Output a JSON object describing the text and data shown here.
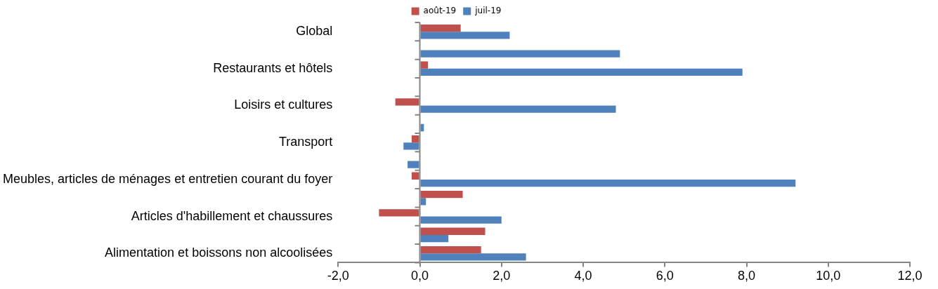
{
  "chart_data": {
    "type": "bar",
    "orientation": "horizontal",
    "legend": "top",
    "categories": [
      "Global",
      null,
      "Restaurants et hôtels",
      null,
      "Loisirs et cultures",
      null,
      "Transport",
      null,
      "Meubles, articles de ménages et entretien courant du foyer",
      null,
      "Articles d'habillement et chaussures",
      null,
      "Alimentation et boissons non alcoolisées"
    ],
    "series": [
      {
        "name": "août-19",
        "color": "#c0504d",
        "values": [
          1.0,
          0.0,
          0.2,
          null,
          -0.6,
          null,
          -0.2,
          null,
          -0.2,
          1.05,
          -1.0,
          1.6,
          1.5
        ]
      },
      {
        "name": "juil-19",
        "color": "#4f81bd",
        "values": [
          2.2,
          4.9,
          7.9,
          null,
          4.8,
          0.1,
          -0.4,
          -0.3,
          9.2,
          0.15,
          2.0,
          0.7,
          2.6
        ]
      }
    ],
    "xlim": [
      -2,
      12
    ],
    "xticks": [
      {
        "value": -2,
        "label": "-2,0"
      },
      {
        "value": 0,
        "label": "0,0"
      },
      {
        "value": 2,
        "label": "2,0"
      },
      {
        "value": 4,
        "label": "4,0"
      },
      {
        "value": 6,
        "label": "6,0"
      },
      {
        "value": 8,
        "label": "8,0"
      },
      {
        "value": 10,
        "label": "10,0"
      },
      {
        "value": 12,
        "label": "12,0"
      }
    ]
  }
}
